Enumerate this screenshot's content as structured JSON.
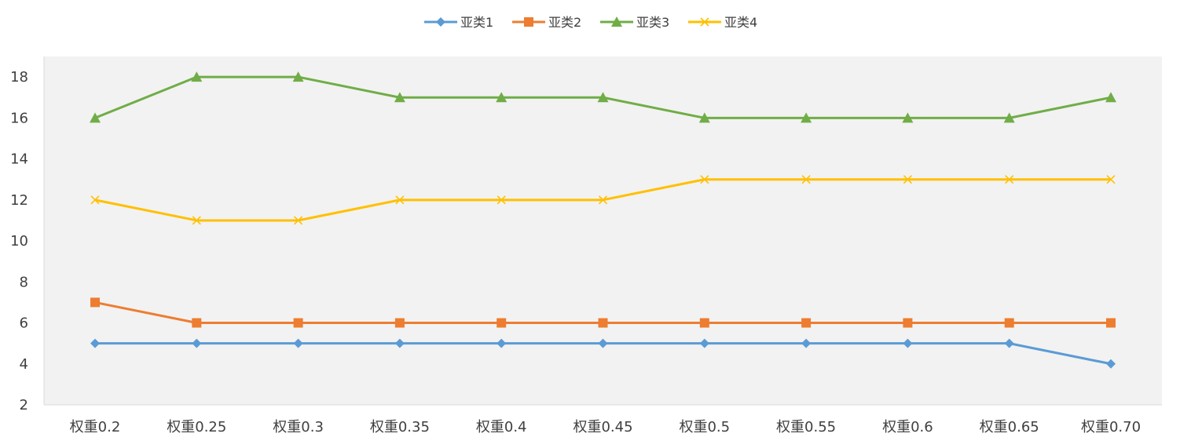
{
  "chart_data": {
    "type": "line",
    "title": "",
    "xlabel": "",
    "ylabel": "",
    "categories": [
      "权重0.2",
      "权重0.25",
      "权重0.3",
      "权重0.35",
      "权重0.4",
      "权重0.45",
      "权重0.5",
      "权重0.55",
      "权重0.6",
      "权重0.65",
      "权重0.70"
    ],
    "ylim": [
      2,
      19
    ],
    "yticks": [
      2,
      4,
      6,
      8,
      10,
      12,
      14,
      16,
      18
    ],
    "grid": false,
    "legend": "top-center",
    "plot_background": "#f2f2f2",
    "series": [
      {
        "name": "亚类1",
        "color": "#5b9bd5",
        "marker": "diamond",
        "values": [
          5,
          5,
          5,
          5,
          5,
          5,
          5,
          5,
          5,
          5,
          4
        ]
      },
      {
        "name": "亚类2",
        "color": "#ed7d31",
        "marker": "square",
        "values": [
          7,
          6,
          6,
          6,
          6,
          6,
          6,
          6,
          6,
          6,
          6
        ]
      },
      {
        "name": "亚类3",
        "color": "#70ad47",
        "marker": "triangle",
        "values": [
          16,
          18,
          18,
          17,
          17,
          17,
          16,
          16,
          16,
          16,
          17
        ]
      },
      {
        "name": "亚类4",
        "color": "#ffc000",
        "marker": "x",
        "values": [
          12,
          11,
          11,
          12,
          12,
          12,
          13,
          13,
          13,
          13,
          13
        ]
      }
    ]
  }
}
